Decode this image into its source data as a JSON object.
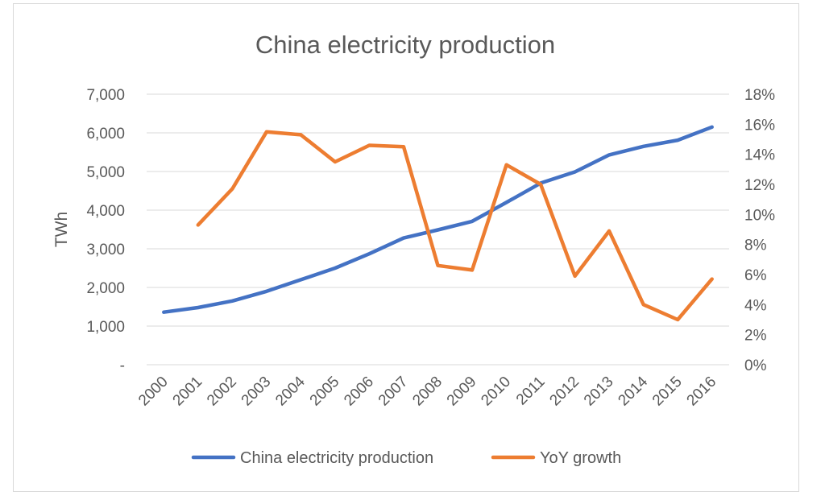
{
  "chart_data": {
    "type": "line",
    "title": "China electricity production",
    "ylabel": "TWh",
    "ylabel_right": "",
    "xlabel": "",
    "categories": [
      "2000",
      "2001",
      "2002",
      "2003",
      "2004",
      "2005",
      "2006",
      "2007",
      "2008",
      "2009",
      "2010",
      "2011",
      "2012",
      "2013",
      "2014",
      "2015",
      "2016"
    ],
    "ylim": [
      0,
      7000
    ],
    "y_ticks": [
      0,
      1000,
      2000,
      3000,
      4000,
      5000,
      6000,
      7000
    ],
    "y_tick_labels": [
      "-",
      "1,000",
      "2,000",
      "3,000",
      "4,000",
      "5,000",
      "6,000",
      "7,000"
    ],
    "y2lim": [
      0,
      18
    ],
    "y2_ticks": [
      0,
      2,
      4,
      6,
      8,
      10,
      12,
      14,
      16,
      18
    ],
    "y2_tick_labels": [
      "0%",
      "2%",
      "4%",
      "6%",
      "8%",
      "10%",
      "12%",
      "14%",
      "16%",
      "18%"
    ],
    "grid": true,
    "legend_position": "bottom",
    "series": [
      {
        "name": "China electricity production",
        "axis": "left",
        "color": "#4472C4",
        "values": [
          1360,
          1480,
          1650,
          1900,
          2200,
          2500,
          2870,
          3280,
          3490,
          3710,
          4200,
          4700,
          4990,
          5430,
          5650,
          5810,
          6150
        ]
      },
      {
        "name": "YoY growth",
        "axis": "right",
        "color": "#ED7D31",
        "values": [
          null,
          9.3,
          11.7,
          15.5,
          15.3,
          13.5,
          14.6,
          14.5,
          6.6,
          6.3,
          13.3,
          12.0,
          5.9,
          8.9,
          4.0,
          3.0,
          5.7
        ]
      }
    ]
  }
}
